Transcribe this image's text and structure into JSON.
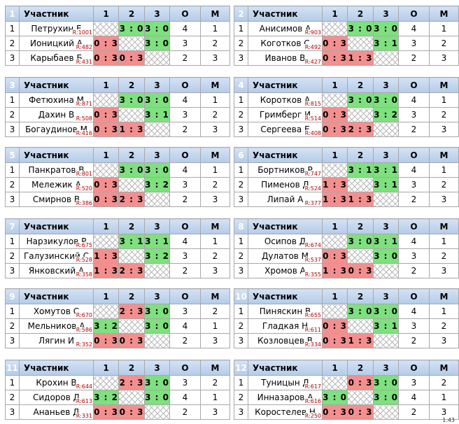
{
  "header": {
    "participant": "Участник",
    "cols": [
      "1",
      "2",
      "3",
      "О",
      "М"
    ]
  },
  "version": "1.43",
  "groups": [
    {
      "num": "1",
      "rows": [
        {
          "place": "1",
          "name": "Петрухин Е",
          "rating": "R:1001",
          "results": [
            "",
            "3 : 0",
            "3 : 0"
          ],
          "points": "4",
          "rank": "1"
        },
        {
          "place": "2",
          "name": "Ионицкий А",
          "rating": "R:482",
          "results": [
            "0 : 3",
            "",
            "3 : 0"
          ],
          "points": "3",
          "rank": "2"
        },
        {
          "place": "3",
          "name": "Карыбаев Б",
          "rating": "R:431",
          "results": [
            "0 : 3",
            "0 : 3",
            ""
          ],
          "points": "2",
          "rank": "3"
        }
      ]
    },
    {
      "num": "2",
      "rows": [
        {
          "place": "1",
          "name": "Анисимов А",
          "rating": "R:903",
          "results": [
            "",
            "3 : 0",
            "3 : 0"
          ],
          "points": "4",
          "rank": "1"
        },
        {
          "place": "2",
          "name": "Коготков С",
          "rating": "R:492",
          "results": [
            "0 : 3",
            "",
            "3 : 1"
          ],
          "points": "3",
          "rank": "2"
        },
        {
          "place": "3",
          "name": "Иванов В",
          "rating": "R:427",
          "results": [
            "0 : 3",
            "1 : 3",
            ""
          ],
          "points": "2",
          "rank": "3"
        }
      ]
    },
    {
      "num": "3",
      "rows": [
        {
          "place": "1",
          "name": "Фетюхина М",
          "rating": "R:871",
          "results": [
            "",
            "3 : 0",
            "3 : 0"
          ],
          "points": "4",
          "rank": "1"
        },
        {
          "place": "2",
          "name": "Дахин В",
          "rating": "R:508",
          "results": [
            "0 : 3",
            "",
            "3 : 1"
          ],
          "points": "3",
          "rank": "2"
        },
        {
          "place": "3",
          "name": "Богаудинов М",
          "rating": "R:416",
          "results": [
            "0 : 3",
            "1 : 3",
            ""
          ],
          "points": "2",
          "rank": "3"
        }
      ]
    },
    {
      "num": "4",
      "rows": [
        {
          "place": "1",
          "name": "Коротков А",
          "rating": "R:815",
          "results": [
            "",
            "3 : 0",
            "3 : 0"
          ],
          "points": "4",
          "rank": "1"
        },
        {
          "place": "2",
          "name": "Гримберг И",
          "rating": "R:514",
          "results": [
            "0 : 3",
            "",
            "3 : 2"
          ],
          "points": "3",
          "rank": "2"
        },
        {
          "place": "3",
          "name": "Сергеева Е",
          "rating": "R:408",
          "results": [
            "0 : 3",
            "2 : 3",
            ""
          ],
          "points": "2",
          "rank": "3"
        }
      ]
    },
    {
      "num": "5",
      "rows": [
        {
          "place": "1",
          "name": "Панкратов В",
          "rating": "R:801",
          "results": [
            "",
            "3 : 0",
            "3 : 0"
          ],
          "points": "4",
          "rank": "1"
        },
        {
          "place": "2",
          "name": "Мележик А",
          "rating": "R:520",
          "results": [
            "0 : 3",
            "",
            "3 : 2"
          ],
          "points": "3",
          "rank": "2"
        },
        {
          "place": "3",
          "name": "Смирнов В",
          "rating": "R:386",
          "results": [
            "0 : 3",
            "2 : 3",
            ""
          ],
          "points": "2",
          "rank": "3"
        }
      ]
    },
    {
      "num": "6",
      "rows": [
        {
          "place": "1",
          "name": "Бортников Р",
          "rating": "R:747",
          "results": [
            "",
            "3 : 1",
            "3 : 1"
          ],
          "points": "4",
          "rank": "1"
        },
        {
          "place": "2",
          "name": "Пименов Д",
          "rating": "R:524",
          "results": [
            "1 : 3",
            "",
            "3 : 1"
          ],
          "points": "3",
          "rank": "2"
        },
        {
          "place": "3",
          "name": "Липай А",
          "rating": "R:377",
          "results": [
            "1 : 3",
            "1 : 3",
            ""
          ],
          "points": "2",
          "rank": "3"
        }
      ]
    },
    {
      "num": "7",
      "rows": [
        {
          "place": "1",
          "name": "Нарзикулов Р",
          "rating": "R:675",
          "results": [
            "",
            "3 : 1",
            "3 : 1"
          ],
          "points": "4",
          "rank": "1"
        },
        {
          "place": "2",
          "name": "Галузинский С",
          "rating": "R:528",
          "results": [
            "1 : 3",
            "",
            "3 : 2"
          ],
          "points": "3",
          "rank": "2"
        },
        {
          "place": "3",
          "name": "Янковский А",
          "rating": "R:358",
          "results": [
            "1 : 3",
            "2 : 3",
            ""
          ],
          "points": "2",
          "rank": "3"
        }
      ]
    },
    {
      "num": "8",
      "rows": [
        {
          "place": "1",
          "name": "Осипов Д",
          "rating": "R:674",
          "results": [
            "",
            "3 : 0",
            "3 : 1"
          ],
          "points": "4",
          "rank": "1"
        },
        {
          "place": "2",
          "name": "Дулатов М",
          "rating": "R:537",
          "results": [
            "0 : 3",
            "",
            "3 : 0"
          ],
          "points": "3",
          "rank": "2"
        },
        {
          "place": "3",
          "name": "Хромов А",
          "rating": "R:355",
          "results": [
            "1 : 3",
            "0 : 3",
            ""
          ],
          "points": "2",
          "rank": "3"
        }
      ]
    },
    {
      "num": "9",
      "rows": [
        {
          "place": "1",
          "name": "Хомутов С",
          "rating": "R:670",
          "results": [
            "",
            "2 : 3",
            "3 : 0"
          ],
          "points": "3",
          "rank": "2"
        },
        {
          "place": "2",
          "name": "Мельников А",
          "rating": "R:586",
          "results": [
            "3 : 2",
            "",
            "3 : 0"
          ],
          "points": "4",
          "rank": "1"
        },
        {
          "place": "3",
          "name": "Лягин И",
          "rating": "R:352",
          "results": [
            "0 : 3",
            "0 : 3",
            ""
          ],
          "points": "2",
          "rank": "3"
        }
      ]
    },
    {
      "num": "10",
      "rows": [
        {
          "place": "1",
          "name": "Пиняскин В",
          "rating": "R:655",
          "results": [
            "",
            "3 : 0",
            "3 : 0"
          ],
          "points": "4",
          "rank": "1"
        },
        {
          "place": "2",
          "name": "Гладкая Н",
          "rating": "R:611",
          "results": [
            "0 : 3",
            "",
            "3 : 1"
          ],
          "points": "3",
          "rank": "2"
        },
        {
          "place": "3",
          "name": "Козловцев В",
          "rating": "R:334",
          "results": [
            "0 : 3",
            "1 : 3",
            ""
          ],
          "points": "2",
          "rank": "3"
        }
      ]
    },
    {
      "num": "11",
      "rows": [
        {
          "place": "1",
          "name": "Крохин В",
          "rating": "R:644",
          "results": [
            "",
            "2 : 3",
            "3 : 0"
          ],
          "points": "3",
          "rank": "2"
        },
        {
          "place": "2",
          "name": "Сидоров Д",
          "rating": "R:613",
          "results": [
            "3 : 2",
            "",
            "3 : 0"
          ],
          "points": "4",
          "rank": "1"
        },
        {
          "place": "3",
          "name": "Ананьев Д",
          "rating": "R:331",
          "results": [
            "0 : 3",
            "0 : 3",
            ""
          ],
          "points": "2",
          "rank": "3"
        }
      ]
    },
    {
      "num": "12",
      "rows": [
        {
          "place": "1",
          "name": "Туницын Д",
          "rating": "R:617",
          "results": [
            "",
            "0 : 3",
            "3 : 0"
          ],
          "points": "3",
          "rank": "2"
        },
        {
          "place": "2",
          "name": "Инназаров А",
          "rating": "R:616",
          "results": [
            "3 : 0",
            "",
            "3 : 0"
          ],
          "points": "4",
          "rank": "1"
        },
        {
          "place": "3",
          "name": "Коростелев Н",
          "rating": "R:250",
          "results": [
            "0 : 3",
            "0 : 3",
            ""
          ],
          "points": "2",
          "rank": "3"
        }
      ]
    }
  ]
}
